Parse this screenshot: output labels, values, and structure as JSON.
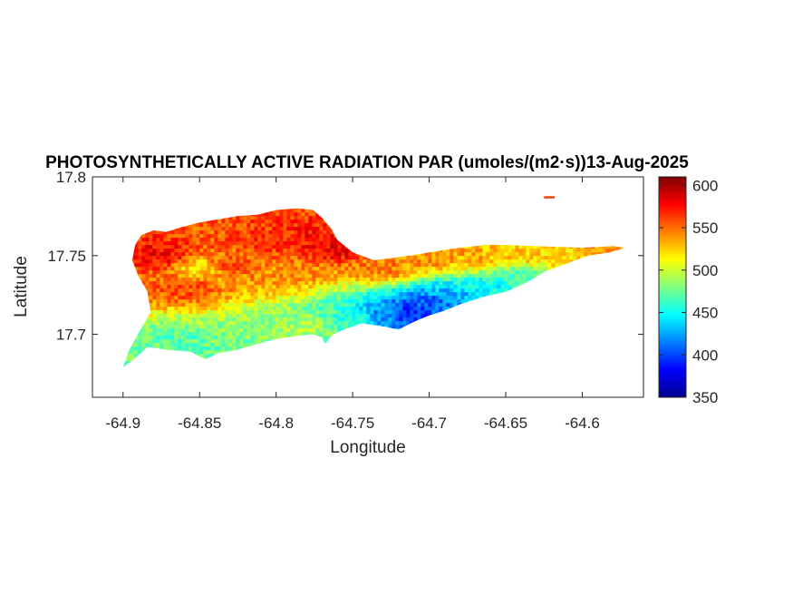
{
  "chart_data": {
    "type": "heatmap",
    "title": "PHOTOSYNTHETICALLY ACTIVE RADIATION PAR (umoles/(m2·s))13-Aug-2025",
    "xlabel": "Longitude",
    "ylabel": "Latitude",
    "xlim": [
      -64.92,
      -64.56
    ],
    "ylim": [
      17.66,
      17.8
    ],
    "xticks": [
      -64.9,
      -64.85,
      -64.8,
      -64.75,
      -64.7,
      -64.65,
      -64.6
    ],
    "xtick_labels": [
      "-64.9",
      "-64.85",
      "-64.8",
      "-64.75",
      "-64.7",
      "-64.65",
      "-64.6"
    ],
    "yticks": [
      17.7,
      17.75,
      17.8
    ],
    "ytick_labels": [
      "17.7",
      "17.75",
      "17.8"
    ],
    "colorbar": {
      "colormap": "jet",
      "range": [
        350,
        610
      ],
      "ticks": [
        350,
        400,
        450,
        500,
        550,
        600
      ],
      "tick_labels": [
        "350",
        "400",
        "450",
        "500",
        "550",
        "600"
      ]
    },
    "grid": false,
    "outline": [
      [
        -64.9,
        17.679
      ],
      [
        -64.893,
        17.684
      ],
      [
        -64.884,
        17.692
      ],
      [
        -64.87,
        17.69
      ],
      [
        -64.856,
        17.689
      ],
      [
        -64.846,
        17.684
      ],
      [
        -64.838,
        17.688
      ],
      [
        -64.826,
        17.69
      ],
      [
        -64.812,
        17.694
      ],
      [
        -64.8,
        17.697
      ],
      [
        -64.786,
        17.699
      ],
      [
        -64.776,
        17.7
      ],
      [
        -64.77,
        17.698
      ],
      [
        -64.768,
        17.694
      ],
      [
        -64.763,
        17.7
      ],
      [
        -64.756,
        17.703
      ],
      [
        -64.744,
        17.707
      ],
      [
        -64.73,
        17.705
      ],
      [
        -64.72,
        17.703
      ],
      [
        -64.71,
        17.708
      ],
      [
        -64.7,
        17.712
      ],
      [
        -64.69,
        17.715
      ],
      [
        -64.68,
        17.719
      ],
      [
        -64.664,
        17.724
      ],
      [
        -64.65,
        17.727
      ],
      [
        -64.636,
        17.733
      ],
      [
        -64.624,
        17.74
      ],
      [
        -64.61,
        17.745
      ],
      [
        -64.596,
        17.75
      ],
      [
        -64.582,
        17.752
      ],
      [
        -64.572,
        17.755
      ],
      [
        -64.58,
        17.756
      ],
      [
        -64.6,
        17.755
      ],
      [
        -64.63,
        17.756
      ],
      [
        -64.66,
        17.757
      ],
      [
        -64.68,
        17.755
      ],
      [
        -64.694,
        17.753
      ],
      [
        -64.706,
        17.751
      ],
      [
        -64.72,
        17.749
      ],
      [
        -64.736,
        17.747
      ],
      [
        -64.75,
        17.752
      ],
      [
        -64.76,
        17.76
      ],
      [
        -64.764,
        17.767
      ],
      [
        -64.77,
        17.774
      ],
      [
        -64.776,
        17.779
      ],
      [
        -64.786,
        17.78
      ],
      [
        -64.8,
        17.779
      ],
      [
        -64.812,
        17.776
      ],
      [
        -64.826,
        17.775
      ],
      [
        -64.838,
        17.773
      ],
      [
        -64.85,
        17.771
      ],
      [
        -64.862,
        17.768
      ],
      [
        -64.872,
        17.765
      ],
      [
        -64.88,
        17.766
      ],
      [
        -64.888,
        17.763
      ],
      [
        -64.892,
        17.757
      ],
      [
        -64.894,
        17.747
      ],
      [
        -64.89,
        17.737
      ],
      [
        -64.884,
        17.727
      ],
      [
        -64.882,
        17.714
      ],
      [
        -64.888,
        17.704
      ],
      [
        -64.896,
        17.69
      ],
      [
        -64.9,
        17.679
      ]
    ],
    "islet": [
      [
        -64.625,
        17.787
      ],
      [
        -64.618,
        17.787
      ]
    ],
    "field_anchors": [
      {
        "lon": -64.875,
        "lat": 17.75,
        "value": 578
      },
      {
        "lon": -64.86,
        "lat": 17.73,
        "value": 558
      },
      {
        "lon": -64.83,
        "lat": 17.745,
        "value": 555
      },
      {
        "lon": -64.8,
        "lat": 17.76,
        "value": 565
      },
      {
        "lon": -64.775,
        "lat": 17.76,
        "value": 575
      },
      {
        "lon": -64.76,
        "lat": 17.755,
        "value": 582
      },
      {
        "lon": -64.85,
        "lat": 17.742,
        "value": 520
      },
      {
        "lon": -64.79,
        "lat": 17.74,
        "value": 540
      },
      {
        "lon": -64.89,
        "lat": 17.69,
        "value": 475
      },
      {
        "lon": -64.86,
        "lat": 17.695,
        "value": 470
      },
      {
        "lon": -64.82,
        "lat": 17.7,
        "value": 480
      },
      {
        "lon": -64.78,
        "lat": 17.705,
        "value": 490
      },
      {
        "lon": -64.75,
        "lat": 17.71,
        "value": 460
      },
      {
        "lon": -64.73,
        "lat": 17.712,
        "value": 420
      },
      {
        "lon": -64.715,
        "lat": 17.713,
        "value": 392
      },
      {
        "lon": -64.7,
        "lat": 17.72,
        "value": 405
      },
      {
        "lon": -64.685,
        "lat": 17.725,
        "value": 430
      },
      {
        "lon": -64.66,
        "lat": 17.73,
        "value": 450
      },
      {
        "lon": -64.64,
        "lat": 17.737,
        "value": 470
      },
      {
        "lon": -64.73,
        "lat": 17.742,
        "value": 545
      },
      {
        "lon": -64.7,
        "lat": 17.748,
        "value": 540
      },
      {
        "lon": -64.67,
        "lat": 17.75,
        "value": 535
      },
      {
        "lon": -64.64,
        "lat": 17.75,
        "value": 525
      },
      {
        "lon": -64.61,
        "lat": 17.749,
        "value": 520
      },
      {
        "lon": -64.585,
        "lat": 17.752,
        "value": 540
      }
    ]
  }
}
